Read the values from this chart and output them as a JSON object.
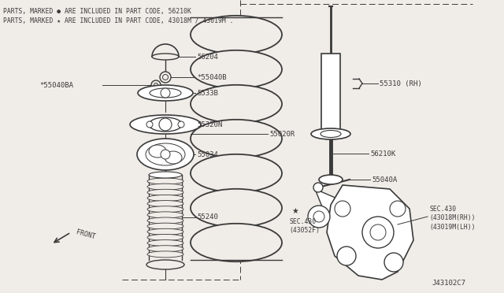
{
  "bg_color": "#f0ede8",
  "line_color": "#3a3a3a",
  "title_line1": "PARTS, MARKED ● ARE INCLUDED IN PART CODE, 56210K",
  "title_line2": "PARTS, MARKED ★ ARE INCLUDED IN PART CODE, 43018M / 43019M .",
  "diagram_id": "J43102C7"
}
